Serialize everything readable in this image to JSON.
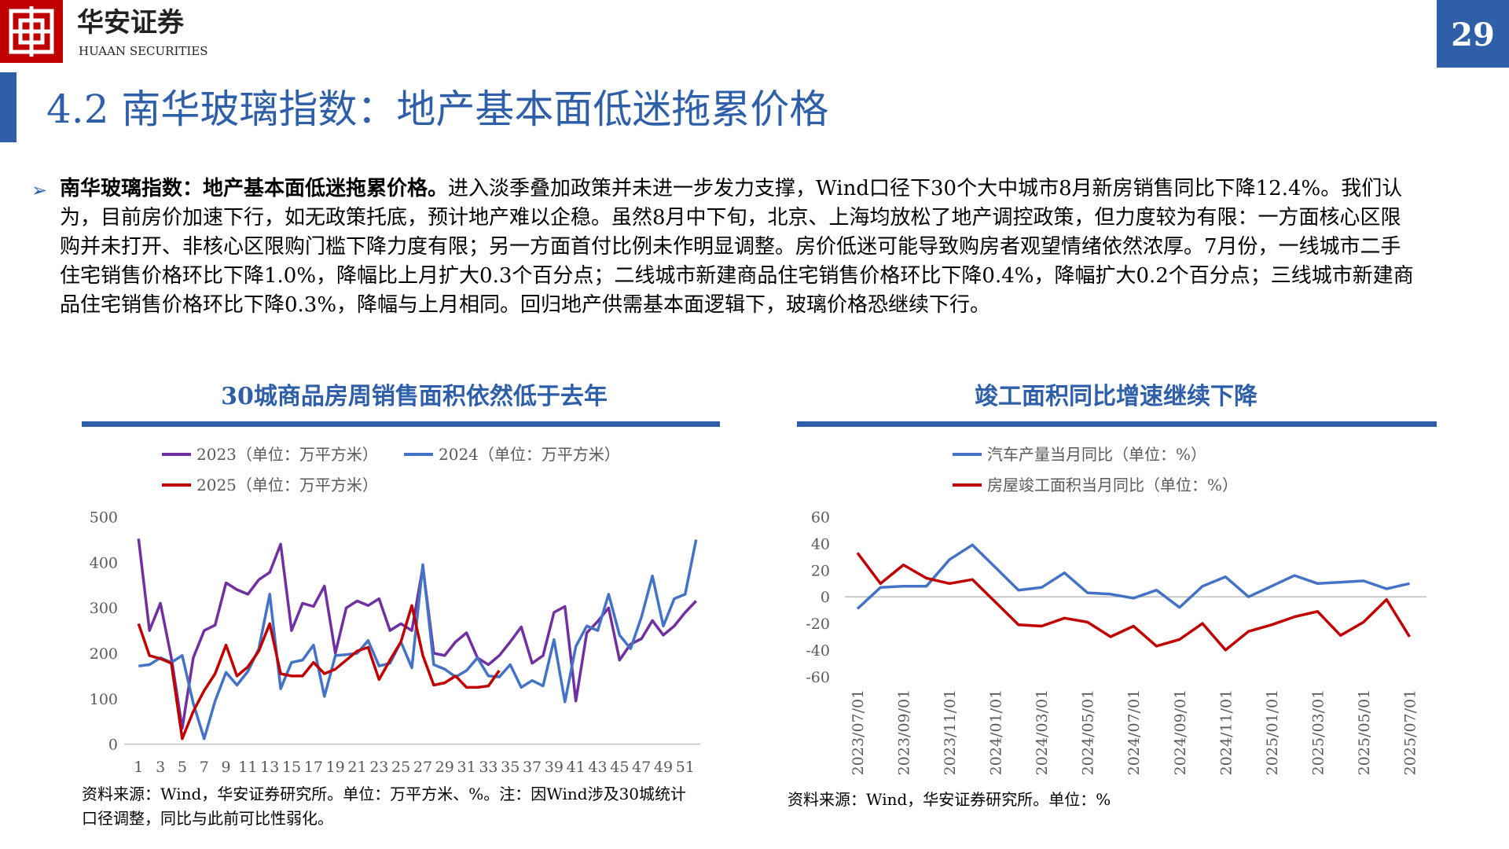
{
  "header": {
    "logo_name": "华安证券",
    "logo_subtitle": "HUAAN SECURITIES",
    "page_number": "29"
  },
  "section_title": "4.2 南华玻璃指数：地产基本面低迷拖累价格",
  "bullet": {
    "lead": "南华玻璃指数：地产基本面低迷拖累价格。",
    "text": "进入淡季叠加政策并未进一步发力支撑，Wind口径下30个大中城市8月新房销售同比下降12.4%。我们认为，目前房价加速下行，如无政策托底，预计地产难以企稳。虽然8月中下旬，北京、上海均放松了地产调控政策，但力度较为有限：一方面核心区限购并未打开、非核心区限购门槛下降力度有限；另一方面首付比例未作明显调整。房价低迷可能导致购房者观望情绪依然浓厚。7月份，一线城市二手住宅销售价格环比下降1.0%，降幅比上月扩大0.3个百分点；二线城市新建商品住宅销售价格环比下降0.4%，降幅扩大0.2个百分点；三线城市新建商品住宅销售价格环比下降0.3%，降幅与上月相同。回归地产供需基本面逻辑下，玻璃价格恐继续下行。"
  },
  "chart_data": [
    {
      "type": "line",
      "title": "30城商品房周销售面积依然低于去年",
      "categories": [
        "1",
        null,
        "3",
        null,
        "5",
        null,
        "7",
        null,
        "9",
        null,
        "11",
        null,
        "13",
        null,
        "15",
        null,
        "17",
        null,
        "19",
        null,
        "21",
        null,
        "23",
        null,
        "25",
        null,
        "27",
        null,
        "29",
        null,
        "31",
        null,
        "33",
        null,
        "35",
        null,
        "37",
        null,
        "39",
        null,
        "41",
        null,
        "43",
        null,
        "45",
        null,
        "47",
        null,
        "49",
        null,
        "51",
        null
      ],
      "series": [
        {
          "name": "2023（单位：万平方米）",
          "color": "#7030a0",
          "values": [
            452,
            250,
            310,
            190,
            35,
            190,
            250,
            262,
            355,
            340,
            330,
            362,
            378,
            440,
            250,
            310,
            303,
            348,
            200,
            300,
            315,
            305,
            320,
            250,
            265,
            250,
            390,
            200,
            195,
            225,
            245,
            190,
            175,
            195,
            225,
            258,
            178,
            195,
            290,
            303,
            95,
            245,
            270,
            300,
            185,
            220,
            232,
            272,
            240,
            260,
            290,
            315
          ]
        },
        {
          "name": "2024（单位：万平方米）",
          "color": "#4472c4",
          "values": [
            172,
            175,
            190,
            180,
            195,
            90,
            12,
            95,
            158,
            130,
            160,
            210,
            330,
            122,
            180,
            185,
            218,
            105,
            195,
            197,
            200,
            228,
            172,
            178,
            225,
            168,
            395,
            175,
            165,
            148,
            162,
            190,
            150,
            148,
            175,
            125,
            140,
            128,
            230,
            93,
            215,
            260,
            250,
            330,
            240,
            210,
            280,
            370,
            260,
            320,
            330,
            450
          ]
        },
        {
          "name": "2025（单位：万平方米）",
          "color": "#c00000",
          "values": [
            265,
            195,
            188,
            178,
            12,
            72,
            118,
            155,
            218,
            150,
            170,
            205,
            265,
            155,
            150,
            150,
            180,
            155,
            165,
            185,
            205,
            213,
            142,
            185,
            225,
            305,
            195,
            130,
            135,
            150,
            125,
            125,
            128,
            162,
            null,
            null,
            null,
            null,
            null,
            null,
            null,
            null,
            null,
            null,
            null,
            null,
            null,
            null,
            null,
            null,
            null,
            null
          ]
        }
      ],
      "ylim": [
        0,
        500
      ],
      "yticks": [
        0,
        100,
        200,
        300,
        400,
        500
      ],
      "note": "资料来源：Wind，华安证券研究所。单位：万平方米、%。注：因Wind涉及30城统计口径调整，同比与此前可比性弱化。"
    },
    {
      "type": "line",
      "title": "竣工面积同比增速继续下降",
      "categories": [
        "2023/07/01",
        null,
        "2023/09/01",
        null,
        "2023/11/01",
        null,
        "2024/01/01",
        null,
        "2024/03/01",
        null,
        "2024/05/01",
        null,
        "2024/07/01",
        null,
        "2024/09/01",
        null,
        "2024/11/01",
        null,
        "2025/01/01",
        null,
        "2025/03/01",
        null,
        "2025/05/01",
        null,
        "2025/07/01"
      ],
      "series": [
        {
          "name": "汽车产量当月同比（单位：%）",
          "color": "#4472c4",
          "values": [
            -9,
            7,
            8,
            8,
            28,
            39,
            22,
            5,
            7,
            18,
            3,
            2,
            -1,
            5,
            -8,
            8,
            15,
            0,
            8,
            16,
            10,
            11,
            12,
            6,
            10
          ]
        },
        {
          "name": "房屋竣工面积当月同比（单位：%）",
          "color": "#c00000",
          "values": [
            33,
            10,
            24,
            14,
            10,
            13,
            -4,
            -21,
            -22,
            -16,
            -19,
            -30,
            -22,
            -37,
            -32,
            -20,
            -40,
            -26,
            -21,
            -15,
            -11,
            -29,
            -19,
            -2,
            -30
          ]
        }
      ],
      "ylim": [
        -60,
        60
      ],
      "yticks": [
        -60,
        -40,
        -20,
        0,
        20,
        40,
        60
      ],
      "note": "资料来源：Wind，华安证券研究所。单位：%"
    }
  ]
}
